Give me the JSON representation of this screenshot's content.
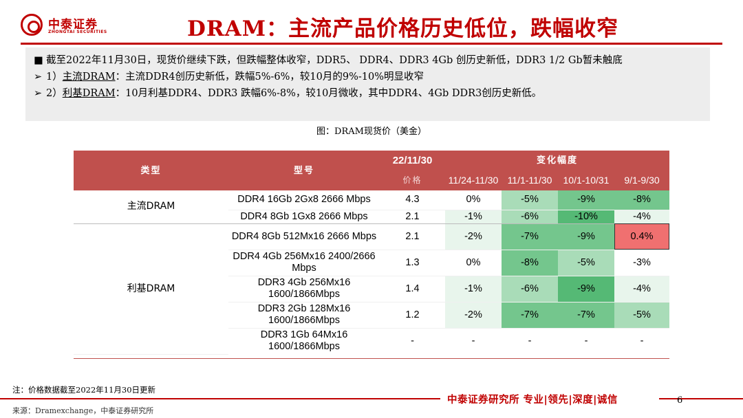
{
  "brand": {
    "name_cn": "中泰证券",
    "name_en": "ZHONGTAI SECURITIES"
  },
  "title": "DRAM：主流产品价格历史低位，跌幅收窄",
  "summary": {
    "line1": "截至2022年11月30日，现货价继续下跌，但跌幅整体收窄，DDR5、 DDR4、DDR3 4Gb 创历史新低，DDR3 1/2 Gb暂未触底",
    "line2_prefix": "1）",
    "line2_link": "主流DRAM",
    "line2_rest": "：主流DDR4创历史新低，跌幅5%-6%，较10月的9%-10%明显收窄",
    "line3_prefix": "2）",
    "line3_link": "利基DRAM",
    "line3_rest": "：10月利基DDR4、DDR3 跌幅6%-8%，较10月微收，其中DDR4、4Gb DDR3创历史新低。"
  },
  "figure_caption": "图：DRAM现货价（美金）",
  "table": {
    "header": {
      "type": "类型",
      "model": "型号",
      "date": "22/11/30",
      "change": "变化幅度",
      "price": "价格",
      "periods": [
        "11/24-11/30",
        "11/1-11/30",
        "10/1-10/31",
        "9/1-9/30"
      ]
    },
    "groups": {
      "mainstream": "主流DRAM",
      "niche": "利基DRAM"
    },
    "rows": [
      {
        "model": "DDR4 16Gb 2Gx8 2666 Mbps",
        "price": "4.3",
        "c1": "0%",
        "c2": "-5%",
        "c3": "-9%",
        "c4": "-8%"
      },
      {
        "model": "DDR4 8Gb 1Gx8 2666 Mbps",
        "price": "2.1",
        "c1": "-1%",
        "c2": "-6%",
        "c3": "-10%",
        "c4": "-4%"
      },
      {
        "model": "DDR4 8Gb 512Mx16 2666 Mbps",
        "price": "2.1",
        "c1": "-2%",
        "c2": "-7%",
        "c3": "-9%",
        "c4": "0.4%"
      },
      {
        "model": "DDR4 4Gb 256Mx16 2400/2666 Mbps",
        "price": "1.3",
        "c1": "0%",
        "c2": "-8%",
        "c3": "-5%",
        "c4": "-3%"
      },
      {
        "model": "DDR3 4Gb 256Mx16 1600/1866Mbps",
        "price": "1.4",
        "c1": "-1%",
        "c2": "-6%",
        "c3": "-9%",
        "c4": "-4%"
      },
      {
        "model": "DDR3 2Gb 128Mx16 1600/1866Mbps",
        "price": "1.2",
        "c1": "-2%",
        "c2": "-7%",
        "c3": "-7%",
        "c4": "-5%"
      },
      {
        "model": "DDR3 1Gb 64Mx16 1600/1866Mbps",
        "price": "-",
        "c1": "-",
        "c2": "-",
        "c3": "-",
        "c4": "-"
      }
    ]
  },
  "footer": {
    "note": "注：价格数据截至2022年11月30日更新",
    "source": "来源：Dramexchange，中泰证券研究所",
    "slogan": "中泰证券研究所 专业|领先|深度|诚信",
    "page": "6"
  }
}
